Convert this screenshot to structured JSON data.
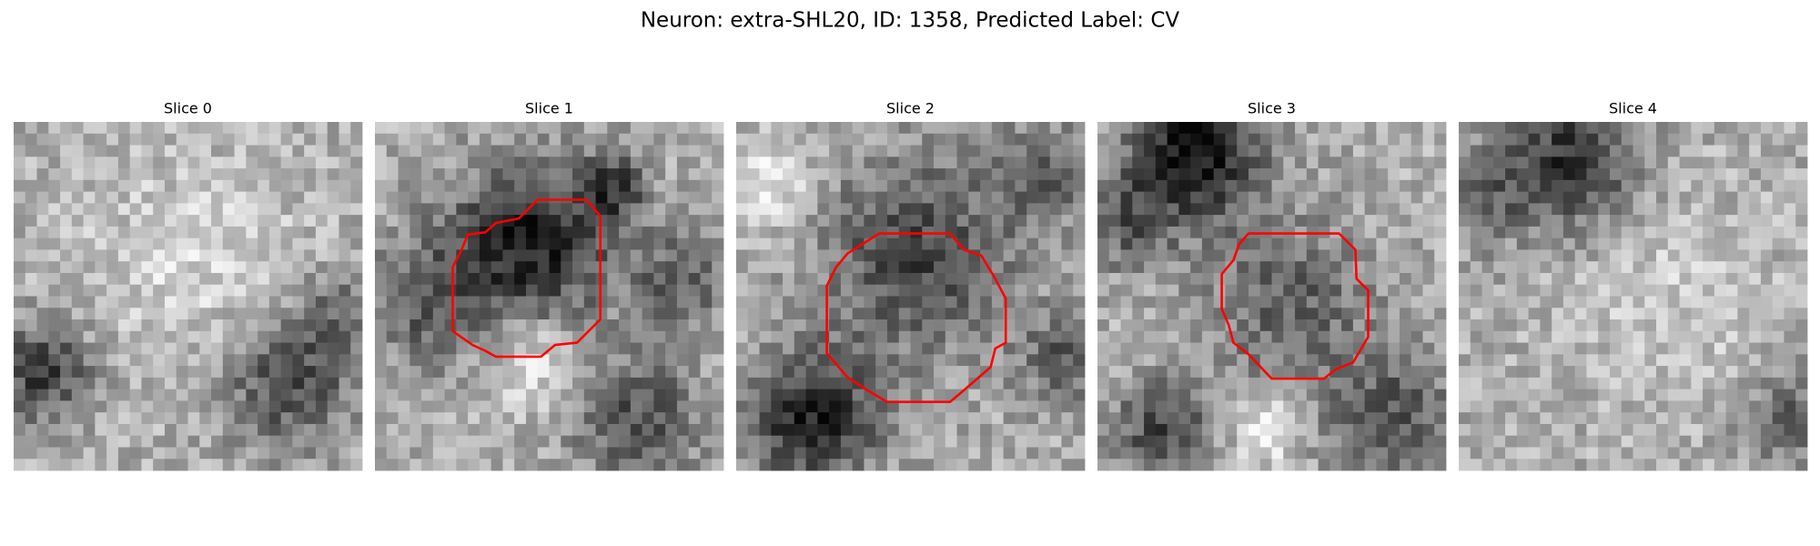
{
  "header": {
    "title": "Neuron: extra-SHL20, ID: 1358, Predicted Label: CV"
  },
  "panels": [
    {
      "title": "Slice 0"
    },
    {
      "title": "Slice 1"
    },
    {
      "title": "Slice 2"
    },
    {
      "title": "Slice 3"
    },
    {
      "title": "Slice 4"
    }
  ]
}
